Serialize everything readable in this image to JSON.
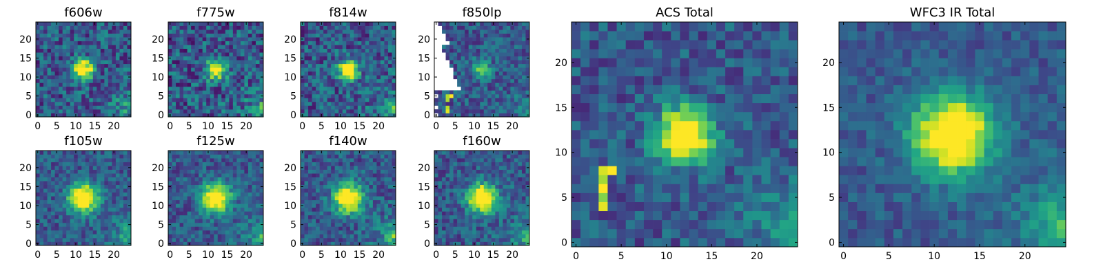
{
  "chart_data": [
    {
      "type": "heatmap",
      "title": "f606w",
      "xlim": [
        0,
        24
      ],
      "ylim": [
        0,
        24
      ],
      "xticks": [
        0,
        5,
        10,
        15,
        20
      ],
      "yticks": [
        0,
        5,
        10,
        15,
        20
      ],
      "colormap": "viridis",
      "source_center": [
        12,
        12
      ],
      "source_amplitude": 0.95,
      "source_sigma": 1.8,
      "noise": 0.28,
      "corner_glow": 0.35
    },
    {
      "type": "heatmap",
      "title": "f775w",
      "xlim": [
        0,
        24
      ],
      "ylim": [
        0,
        24
      ],
      "xticks": [
        0,
        5,
        10,
        15,
        20
      ],
      "yticks": [
        0,
        5,
        10,
        15,
        20
      ],
      "colormap": "viridis",
      "source_center": [
        12,
        12
      ],
      "source_amplitude": 0.9,
      "source_sigma": 1.8,
      "noise": 0.3,
      "corner_glow": 0.35
    },
    {
      "type": "heatmap",
      "title": "f814w",
      "xlim": [
        0,
        24
      ],
      "ylim": [
        0,
        24
      ],
      "xticks": [
        0,
        5,
        10,
        15,
        20
      ],
      "yticks": [
        0,
        5,
        10,
        15,
        20
      ],
      "colormap": "viridis",
      "source_center": [
        12,
        12
      ],
      "source_amplitude": 0.95,
      "source_sigma": 1.8,
      "noise": 0.28,
      "corner_glow": 0.35
    },
    {
      "type": "heatmap",
      "title": "f850lp",
      "xlim": [
        0,
        24
      ],
      "ylim": [
        0,
        24
      ],
      "xticks": [
        0,
        5,
        10,
        15,
        20
      ],
      "yticks": [
        0,
        5,
        10,
        15,
        20
      ],
      "colormap": "viridis",
      "source_center": [
        12,
        12
      ],
      "source_amplitude": 0.55,
      "source_sigma": 1.6,
      "noise": 0.22,
      "corner_glow": 0.25,
      "masked_region": "upper-left",
      "edge_hot_pixels": [
        [
          3,
          1
        ],
        [
          3,
          2
        ],
        [
          3,
          4
        ],
        [
          3,
          5
        ],
        [
          4,
          5
        ],
        [
          3,
          7
        ],
        [
          3,
          8
        ],
        [
          4,
          9
        ]
      ]
    },
    {
      "type": "heatmap",
      "title": "f105w",
      "xlim": [
        0,
        24
      ],
      "ylim": [
        0,
        24
      ],
      "xticks": [
        0,
        5,
        10,
        15,
        20
      ],
      "yticks": [
        0,
        5,
        10,
        15,
        20
      ],
      "colormap": "viridis",
      "source_center": [
        12,
        12
      ],
      "source_amplitude": 1.0,
      "source_sigma": 2.6,
      "noise": 0.2,
      "corner_glow": 0.45
    },
    {
      "type": "heatmap",
      "title": "f125w",
      "xlim": [
        0,
        24
      ],
      "ylim": [
        0,
        24
      ],
      "xticks": [
        0,
        5,
        10,
        15,
        20
      ],
      "yticks": [
        0,
        5,
        10,
        15,
        20
      ],
      "colormap": "viridis",
      "source_center": [
        12,
        12
      ],
      "source_amplitude": 1.0,
      "source_sigma": 2.6,
      "noise": 0.2,
      "corner_glow": 0.45
    },
    {
      "type": "heatmap",
      "title": "f140w",
      "xlim": [
        0,
        24
      ],
      "ylim": [
        0,
        24
      ],
      "xticks": [
        0,
        5,
        10,
        15,
        20
      ],
      "yticks": [
        0,
        5,
        10,
        15,
        20
      ],
      "colormap": "viridis",
      "source_center": [
        12,
        12
      ],
      "source_amplitude": 1.0,
      "source_sigma": 2.6,
      "noise": 0.22,
      "corner_glow": 0.45
    },
    {
      "type": "heatmap",
      "title": "f160w",
      "xlim": [
        0,
        24
      ],
      "ylim": [
        0,
        24
      ],
      "xticks": [
        0,
        5,
        10,
        15,
        20
      ],
      "yticks": [
        0,
        5,
        10,
        15,
        20
      ],
      "colormap": "viridis",
      "source_center": [
        12,
        12
      ],
      "source_amplitude": 1.0,
      "source_sigma": 2.6,
      "noise": 0.22,
      "corner_glow": 0.45
    },
    {
      "type": "heatmap",
      "title": "ACS Total",
      "xlim": [
        0,
        24
      ],
      "ylim": [
        0,
        24
      ],
      "xticks": [
        0,
        5,
        10,
        15,
        20
      ],
      "yticks": [
        0,
        5,
        10,
        15,
        20
      ],
      "colormap": "viridis",
      "source_center": [
        12,
        12
      ],
      "source_amplitude": 1.0,
      "source_sigma": 2.1,
      "noise": 0.2,
      "corner_glow": 0.35,
      "edge_hot_pixels": [
        [
          3,
          5
        ],
        [
          3,
          6
        ],
        [
          3,
          7
        ],
        [
          4,
          8
        ],
        [
          3,
          8
        ],
        [
          3,
          4
        ]
      ]
    },
    {
      "type": "heatmap",
      "title": "WFC3 IR Total",
      "xlim": [
        0,
        24
      ],
      "ylim": [
        0,
        24
      ],
      "xticks": [
        0,
        5,
        10,
        15,
        20
      ],
      "yticks": [
        0,
        5,
        10,
        15,
        20
      ],
      "colormap": "viridis",
      "source_center": [
        12,
        12
      ],
      "source_amplitude": 1.0,
      "source_sigma": 3.0,
      "noise": 0.14,
      "corner_glow": 0.5
    }
  ]
}
